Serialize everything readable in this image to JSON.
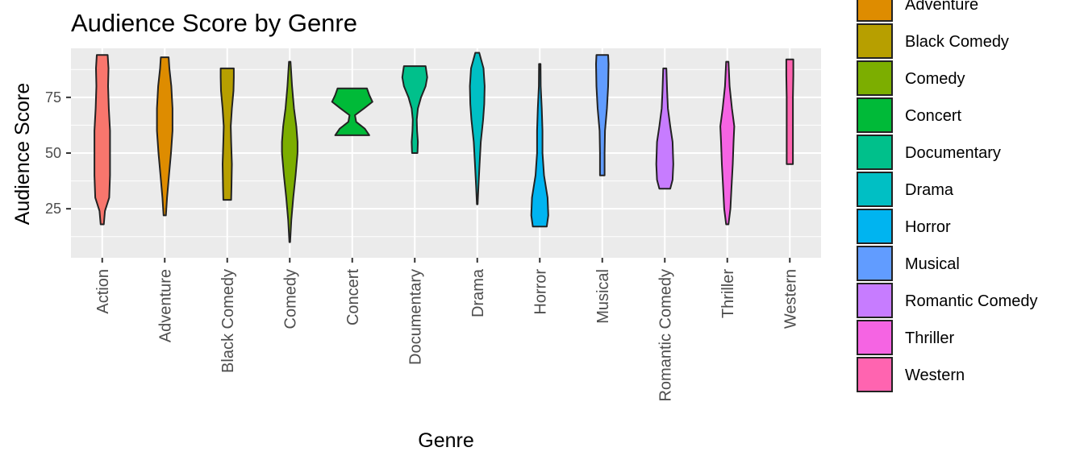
{
  "chart_data": {
    "type": "violin",
    "title": "Audience Score by Genre",
    "xlabel": "Genre",
    "ylabel": "Audience Score",
    "ylim": [
      3,
      97
    ],
    "yticks": [
      25,
      50,
      75
    ],
    "grid": true,
    "legend_placement": "right",
    "categories": [
      "Action",
      "Adventure",
      "Black Comedy",
      "Comedy",
      "Concert",
      "Documentary",
      "Drama",
      "Horror",
      "Musical",
      "Romantic Comedy",
      "Thriller",
      "Western"
    ],
    "colors": [
      "#F8766D",
      "#DE8C00",
      "#B79F00",
      "#7CAE00",
      "#00BA38",
      "#00C08B",
      "#00BFC4",
      "#00B4F0",
      "#619CFF",
      "#C77CFF",
      "#F564E3",
      "#FF64B0"
    ],
    "series": [
      {
        "name": "Action",
        "min": 18,
        "max": 94,
        "profile": [
          [
            18,
            0.2
          ],
          [
            24,
            0.35
          ],
          [
            30,
            0.9
          ],
          [
            40,
            1.0
          ],
          [
            50,
            1.0
          ],
          [
            60,
            1.0
          ],
          [
            70,
            0.85
          ],
          [
            80,
            0.75
          ],
          [
            88,
            0.8
          ],
          [
            94,
            0.7
          ]
        ]
      },
      {
        "name": "Adventure",
        "min": 22,
        "max": 93,
        "profile": [
          [
            22,
            0.15
          ],
          [
            30,
            0.3
          ],
          [
            40,
            0.55
          ],
          [
            50,
            0.8
          ],
          [
            60,
            1.0
          ],
          [
            70,
            1.0
          ],
          [
            80,
            0.85
          ],
          [
            88,
            0.6
          ],
          [
            93,
            0.5
          ]
        ]
      },
      {
        "name": "Black Comedy",
        "min": 29,
        "max": 88,
        "profile": [
          [
            29,
            0.5
          ],
          [
            35,
            0.55
          ],
          [
            45,
            0.6
          ],
          [
            55,
            0.5
          ],
          [
            62,
            0.45
          ],
          [
            70,
            0.6
          ],
          [
            78,
            0.8
          ],
          [
            84,
            0.85
          ],
          [
            88,
            0.85
          ]
        ]
      },
      {
        "name": "Comedy",
        "min": 10,
        "max": 91,
        "profile": [
          [
            10,
            0.05
          ],
          [
            20,
            0.2
          ],
          [
            30,
            0.45
          ],
          [
            40,
            0.75
          ],
          [
            50,
            1.0
          ],
          [
            55,
            1.0
          ],
          [
            62,
            0.85
          ],
          [
            70,
            0.55
          ],
          [
            80,
            0.3
          ],
          [
            91,
            0.1
          ]
        ]
      },
      {
        "name": "Concert",
        "min": 58,
        "max": 79,
        "profile": [
          [
            58,
            2.2
          ],
          [
            61,
            1.6
          ],
          [
            64,
            0.5
          ],
          [
            67,
            0.35
          ],
          [
            70,
            1.5
          ],
          [
            73,
            2.6
          ],
          [
            76,
            2.2
          ],
          [
            79,
            1.9
          ]
        ]
      },
      {
        "name": "Documentary",
        "min": 50,
        "max": 89,
        "profile": [
          [
            50,
            0.35
          ],
          [
            55,
            0.4
          ],
          [
            60,
            0.3
          ],
          [
            65,
            0.25
          ],
          [
            70,
            0.4
          ],
          [
            75,
            0.8
          ],
          [
            80,
            1.4
          ],
          [
            84,
            1.6
          ],
          [
            89,
            1.4
          ]
        ]
      },
      {
        "name": "Drama",
        "min": 27,
        "max": 95,
        "profile": [
          [
            27,
            0.05
          ],
          [
            35,
            0.15
          ],
          [
            45,
            0.3
          ],
          [
            55,
            0.45
          ],
          [
            65,
            0.75
          ],
          [
            72,
            0.9
          ],
          [
            80,
            0.95
          ],
          [
            88,
            0.8
          ],
          [
            95,
            0.25
          ]
        ]
      },
      {
        "name": "Horror",
        "min": 17,
        "max": 90,
        "profile": [
          [
            17,
            0.9
          ],
          [
            22,
            1.1
          ],
          [
            30,
            1.0
          ],
          [
            40,
            0.55
          ],
          [
            50,
            0.35
          ],
          [
            60,
            0.35
          ],
          [
            70,
            0.25
          ],
          [
            80,
            0.12
          ],
          [
            90,
            0.1
          ]
        ]
      },
      {
        "name": "Musical",
        "min": 40,
        "max": 94,
        "profile": [
          [
            40,
            0.3
          ],
          [
            50,
            0.3
          ],
          [
            60,
            0.35
          ],
          [
            70,
            0.6
          ],
          [
            80,
            0.75
          ],
          [
            90,
            0.8
          ],
          [
            94,
            0.75
          ]
        ]
      },
      {
        "name": "Romantic Comedy",
        "min": 34,
        "max": 88,
        "profile": [
          [
            34,
            0.7
          ],
          [
            38,
            1.0
          ],
          [
            45,
            1.1
          ],
          [
            55,
            1.0
          ],
          [
            62,
            0.7
          ],
          [
            70,
            0.4
          ],
          [
            78,
            0.3
          ],
          [
            88,
            0.2
          ]
        ]
      },
      {
        "name": "Thriller",
        "min": 18,
        "max": 91,
        "profile": [
          [
            18,
            0.15
          ],
          [
            25,
            0.4
          ],
          [
            35,
            0.55
          ],
          [
            45,
            0.7
          ],
          [
            55,
            0.8
          ],
          [
            62,
            0.9
          ],
          [
            70,
            0.6
          ],
          [
            80,
            0.3
          ],
          [
            91,
            0.15
          ]
        ]
      },
      {
        "name": "Western",
        "min": 45,
        "max": 92,
        "profile": [
          [
            45,
            0.4
          ],
          [
            55,
            0.4
          ],
          [
            65,
            0.4
          ],
          [
            75,
            0.4
          ],
          [
            85,
            0.45
          ],
          [
            92,
            0.45
          ]
        ]
      }
    ]
  },
  "legend": {
    "entries": [
      "Adventure",
      "Black Comedy",
      "Comedy",
      "Concert",
      "Documentary",
      "Drama",
      "Horror",
      "Musical",
      "Romantic Comedy",
      "Thriller",
      "Western"
    ],
    "colors": [
      "#DE8C00",
      "#B79F00",
      "#7CAE00",
      "#00BA38",
      "#00C08B",
      "#00BFC4",
      "#00B4F0",
      "#619CFF",
      "#C77CFF",
      "#F564E3",
      "#FF64B0"
    ]
  }
}
